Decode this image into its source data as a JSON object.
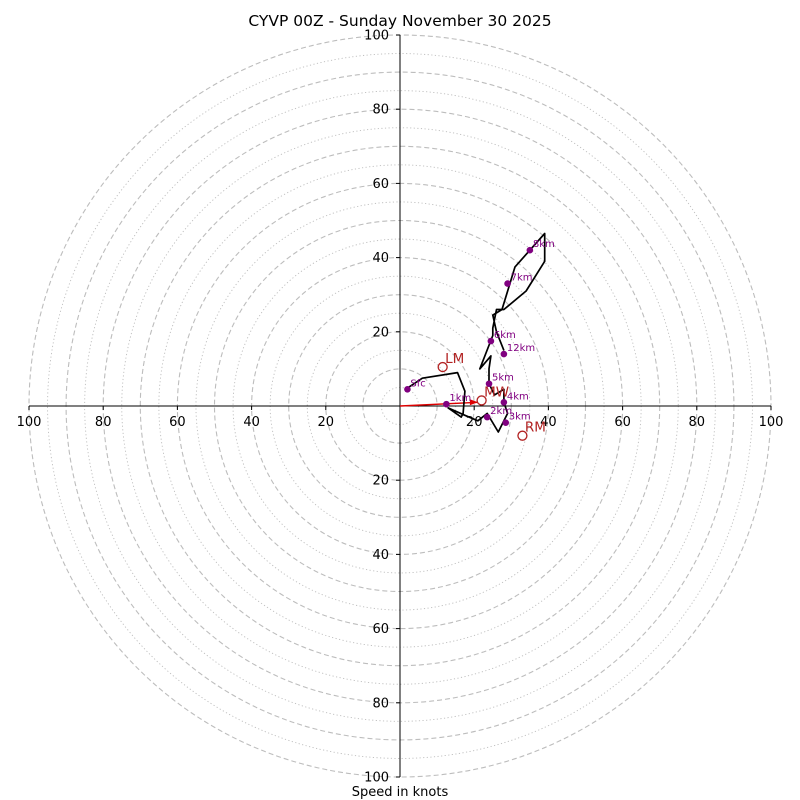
{
  "chart_data": {
    "type": "hodograph",
    "title": "CYVP 00Z - Sunday November 30 2025",
    "xlabel": "Speed in knots",
    "axis_range": [
      -100,
      100
    ],
    "axis_ticks": [
      {
        "value": -100,
        "label": "100"
      },
      {
        "value": -80,
        "label": "80"
      },
      {
        "value": -60,
        "label": "60"
      },
      {
        "value": -40,
        "label": "40"
      },
      {
        "value": -20,
        "label": "20"
      },
      {
        "value": 20,
        "label": "20"
      },
      {
        "value": 40,
        "label": "40"
      },
      {
        "value": 60,
        "label": "60"
      },
      {
        "value": 80,
        "label": "80"
      },
      {
        "value": 100,
        "label": "100"
      }
    ],
    "dashed_rings": [
      10,
      20,
      30,
      40,
      50,
      60,
      70,
      80,
      90,
      100
    ],
    "dotted_rings": [
      5,
      15,
      25,
      35,
      45,
      55,
      65,
      75,
      85,
      95
    ],
    "hodograph_trace": [
      [
        1.5,
        4.5
      ],
      [
        6,
        7.5
      ],
      [
        15.5,
        9
      ],
      [
        17.5,
        4
      ],
      [
        17,
        -2
      ],
      [
        16.5,
        -3
      ],
      [
        13,
        -0.5
      ],
      [
        17.5,
        -2.5
      ],
      [
        21,
        -4
      ],
      [
        23.5,
        -2
      ],
      [
        26.5,
        -7
      ],
      [
        28,
        -4
      ],
      [
        29,
        -2
      ],
      [
        28,
        1
      ],
      [
        28,
        4.5
      ],
      [
        25.5,
        3
      ],
      [
        24,
        6
      ],
      [
        24,
        10
      ],
      [
        24.5,
        13.5
      ],
      [
        21.5,
        10
      ],
      [
        25,
        19
      ],
      [
        25,
        21
      ],
      [
        26,
        26
      ],
      [
        28,
        26
      ],
      [
        34,
        31
      ],
      [
        39,
        39
      ],
      [
        39,
        46.5
      ],
      [
        31,
        37.5
      ],
      [
        27.5,
        26
      ],
      [
        25,
        24.5
      ],
      [
        26,
        20
      ],
      [
        28,
        15
      ]
    ],
    "height_markers": [
      {
        "label": "Sfc",
        "u": 2,
        "v": 4.5
      },
      {
        "label": "1km",
        "u": 12.5,
        "v": 0.5
      },
      {
        "label": "2km",
        "u": 23.5,
        "v": -3
      },
      {
        "label": "3km",
        "u": 28.5,
        "v": -4.5
      },
      {
        "label": "4km",
        "u": 28,
        "v": 1
      },
      {
        "label": "5km",
        "u": 24,
        "v": 6
      },
      {
        "label": "6km",
        "u": 24.5,
        "v": 17.5
      },
      {
        "label": "7km",
        "u": 29,
        "v": 33
      },
      {
        "label": "8km",
        "u": 35,
        "v": 42
      },
      {
        "label": "12km",
        "u": 28,
        "v": 14
      }
    ],
    "storm_motion": [
      {
        "label": "LM",
        "u": 11.5,
        "v": 10.5
      },
      {
        "label": "MW",
        "u": 22,
        "v": 1.5
      },
      {
        "label": "RM",
        "u": 33,
        "v": -8
      }
    ],
    "mean_wind_vector": {
      "from": [
        0,
        0
      ],
      "to": [
        21,
        1
      ]
    },
    "colors": {
      "grid": "#bdbdbd",
      "trace": "#000000",
      "marker": "#800080",
      "storm_motion": "#b22222",
      "vector": "#dd0000"
    }
  }
}
